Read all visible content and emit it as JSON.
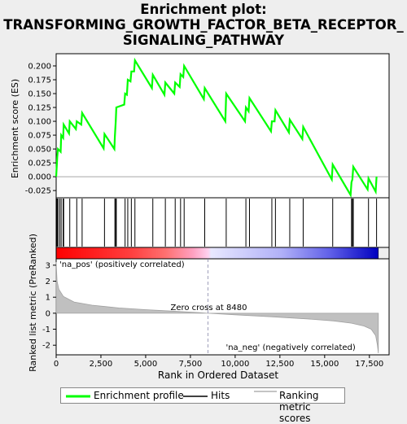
{
  "title_lines": [
    "Enrichment plot:",
    "TRANSFORMING_GROWTH_FACTOR_BETA_RECEPTOR_",
    "SIGNALING_PATHWAY"
  ],
  "colors": {
    "es_line": "#00ff00",
    "hits": "#000000",
    "metric_fill": "#c0c0c0",
    "pos": "#ff0000",
    "neg": "#0000ff"
  },
  "chart_data": {
    "type": "line",
    "top": {
      "ylabel": "Enrichment score (ES)",
      "yticks": [
        0.2,
        0.175,
        0.15,
        0.125,
        0.1,
        0.075,
        0.05,
        0.025,
        0.0,
        -0.025
      ],
      "ytick_labels": [
        "0.200",
        "0.175",
        "0.150",
        "0.125",
        "0.100",
        "0.075",
        "0.050",
        "0.025",
        "0.000",
        "-0.025"
      ],
      "ylim": [
        -0.038,
        0.222
      ],
      "es_points": [
        [
          0,
          0
        ],
        [
          30,
          0.018
        ],
        [
          60,
          0.035
        ],
        [
          100,
          0.05
        ],
        [
          250,
          0.045
        ],
        [
          280,
          0.075
        ],
        [
          390,
          0.07
        ],
        [
          420,
          0.094
        ],
        [
          720,
          0.078
        ],
        [
          760,
          0.1
        ],
        [
          1100,
          0.086
        ],
        [
          1150,
          0.1
        ],
        [
          1400,
          0.094
        ],
        [
          1450,
          0.115
        ],
        [
          2650,
          0.051
        ],
        [
          2700,
          0.077
        ],
        [
          3250,
          0.05
        ],
        [
          3280,
          0.072
        ],
        [
          3330,
          0.1
        ],
        [
          3360,
          0.125
        ],
        [
          3800,
          0.13
        ],
        [
          3850,
          0.15
        ],
        [
          3950,
          0.148
        ],
        [
          4000,
          0.175
        ],
        [
          4150,
          0.172
        ],
        [
          4200,
          0.19
        ],
        [
          4350,
          0.19
        ],
        [
          4400,
          0.21
        ],
        [
          5350,
          0.16
        ],
        [
          5400,
          0.184
        ],
        [
          6050,
          0.148
        ],
        [
          6100,
          0.17
        ],
        [
          6600,
          0.15
        ],
        [
          6650,
          0.17
        ],
        [
          6900,
          0.162
        ],
        [
          6950,
          0.185
        ],
        [
          7100,
          0.18
        ],
        [
          7150,
          0.2
        ],
        [
          8250,
          0.14
        ],
        [
          8300,
          0.16
        ],
        [
          9450,
          0.1
        ],
        [
          9500,
          0.15
        ],
        [
          10550,
          0.1
        ],
        [
          10600,
          0.125
        ],
        [
          10750,
          0.118
        ],
        [
          10800,
          0.142
        ],
        [
          12000,
          0.082
        ],
        [
          12050,
          0.1
        ],
        [
          12200,
          0.1
        ],
        [
          12250,
          0.12
        ],
        [
          13000,
          0.08
        ],
        [
          13050,
          0.103
        ],
        [
          13750,
          0.068
        ],
        [
          13800,
          0.09
        ],
        [
          15400,
          -0.005
        ],
        [
          15450,
          0.022
        ],
        [
          16450,
          -0.033
        ],
        [
          16500,
          -0.01
        ],
        [
          16550,
          -0.005
        ],
        [
          16600,
          0.018
        ],
        [
          17400,
          -0.023
        ],
        [
          17450,
          -0.003
        ],
        [
          17850,
          -0.027
        ],
        [
          17900,
          0.0
        ]
      ]
    },
    "hits_positions": [
      30,
      60,
      100,
      200,
      280,
      390,
      420,
      760,
      1150,
      1450,
      2700,
      3280,
      3330,
      3360,
      3850,
      4000,
      4200,
      4400,
      5400,
      6100,
      6650,
      6950,
      7150,
      8300,
      9500,
      10600,
      10800,
      12050,
      12250,
      13050,
      13800,
      15450,
      16500,
      16550,
      16600,
      17450,
      17900
    ],
    "bottom": {
      "ylabel": "Ranked list metric (PreRanked)",
      "xlabel": "Rank in Ordered Dataset",
      "yticks": [
        3,
        2,
        1,
        0,
        -1,
        -2
      ],
      "ylim": [
        -2.6,
        3.4
      ],
      "xticks": [
        0,
        2500,
        5000,
        7500,
        10000,
        12500,
        15000,
        17500
      ],
      "xtick_labels": [
        "0",
        "2,500",
        "5,000",
        "7,500",
        "10,000",
        "12,500",
        "15,000",
        "17,500"
      ],
      "xlim": [
        0,
        18600
      ],
      "n_genes": 18000,
      "zero_cross": 8480,
      "zero_cross_label": "Zero cross at 8480",
      "pos_label": "'na_pos' (positively correlated)",
      "neg_label": "'na_neg' (negatively correlated)",
      "metric_points": [
        [
          0,
          3.2
        ],
        [
          50,
          2.0
        ],
        [
          150,
          1.5
        ],
        [
          400,
          1.05
        ],
        [
          1000,
          0.7
        ],
        [
          2000,
          0.5
        ],
        [
          3500,
          0.33
        ],
        [
          5000,
          0.22
        ],
        [
          6500,
          0.13
        ],
        [
          8000,
          0.04
        ],
        [
          8480,
          0.0
        ],
        [
          10000,
          -0.1
        ],
        [
          12000,
          -0.22
        ],
        [
          14000,
          -0.35
        ],
        [
          15500,
          -0.48
        ],
        [
          16500,
          -0.62
        ],
        [
          17200,
          -0.8
        ],
        [
          17600,
          -1.0
        ],
        [
          17850,
          -1.4
        ],
        [
          17950,
          -2.0
        ],
        [
          18000,
          -2.5
        ]
      ]
    }
  },
  "legend": {
    "es": "Enrichment profile",
    "hits": "Hits",
    "metric": "Ranking metric scores"
  }
}
